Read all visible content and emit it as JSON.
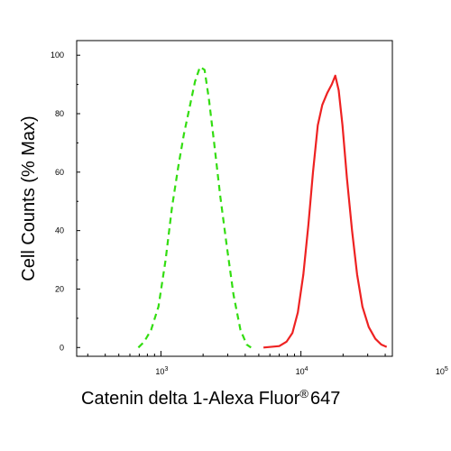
{
  "chart_data": {
    "type": "line",
    "title": "",
    "xlabel": "Catenin delta 1-Alexa Fluor",
    "xlabel_mark": "®",
    "xlabel_suffix": "647",
    "ylabel": "Cell Counts (% Max)",
    "x_scale": "log",
    "xlim": [
      250,
      45000
    ],
    "ylim": [
      -3,
      105
    ],
    "y_ticks": [
      0,
      20,
      40,
      60,
      80,
      100
    ],
    "x_ticks": [
      {
        "value": 1000,
        "base": "10",
        "exp": "3"
      },
      {
        "value": 10000,
        "base": "10",
        "exp": "4"
      },
      {
        "value": 100000,
        "base": "10",
        "exp": "5"
      }
    ],
    "grid": false,
    "legend": "none",
    "series": [
      {
        "color": "#33dd11",
        "style": "dashed",
        "points": [
          [
            690,
            0
          ],
          [
            760,
            2
          ],
          [
            850,
            6
          ],
          [
            960,
            14
          ],
          [
            1080,
            30
          ],
          [
            1200,
            48
          ],
          [
            1330,
            62
          ],
          [
            1460,
            73
          ],
          [
            1600,
            82
          ],
          [
            1750,
            91
          ],
          [
            1900,
            96
          ],
          [
            2050,
            95
          ],
          [
            2200,
            85
          ],
          [
            2400,
            70
          ],
          [
            2650,
            52
          ],
          [
            2950,
            35
          ],
          [
            3300,
            18
          ],
          [
            3700,
            6
          ],
          [
            4100,
            1
          ],
          [
            4400,
            0
          ]
        ]
      },
      {
        "color": "#ee2222",
        "style": "solid",
        "points": [
          [
            5400,
            0
          ],
          [
            7000,
            0.5
          ],
          [
            7900,
            2
          ],
          [
            8700,
            5
          ],
          [
            9500,
            12
          ],
          [
            10400,
            25
          ],
          [
            11300,
            42
          ],
          [
            12200,
            60
          ],
          [
            13200,
            76
          ],
          [
            14200,
            83
          ],
          [
            15400,
            87
          ],
          [
            16600,
            90
          ],
          [
            17600,
            93
          ],
          [
            18600,
            88
          ],
          [
            19800,
            76
          ],
          [
            21300,
            58
          ],
          [
            23200,
            40
          ],
          [
            25200,
            25
          ],
          [
            27500,
            14
          ],
          [
            30500,
            7
          ],
          [
            34000,
            3
          ],
          [
            37500,
            1
          ],
          [
            41000,
            0.2
          ]
        ]
      }
    ]
  }
}
